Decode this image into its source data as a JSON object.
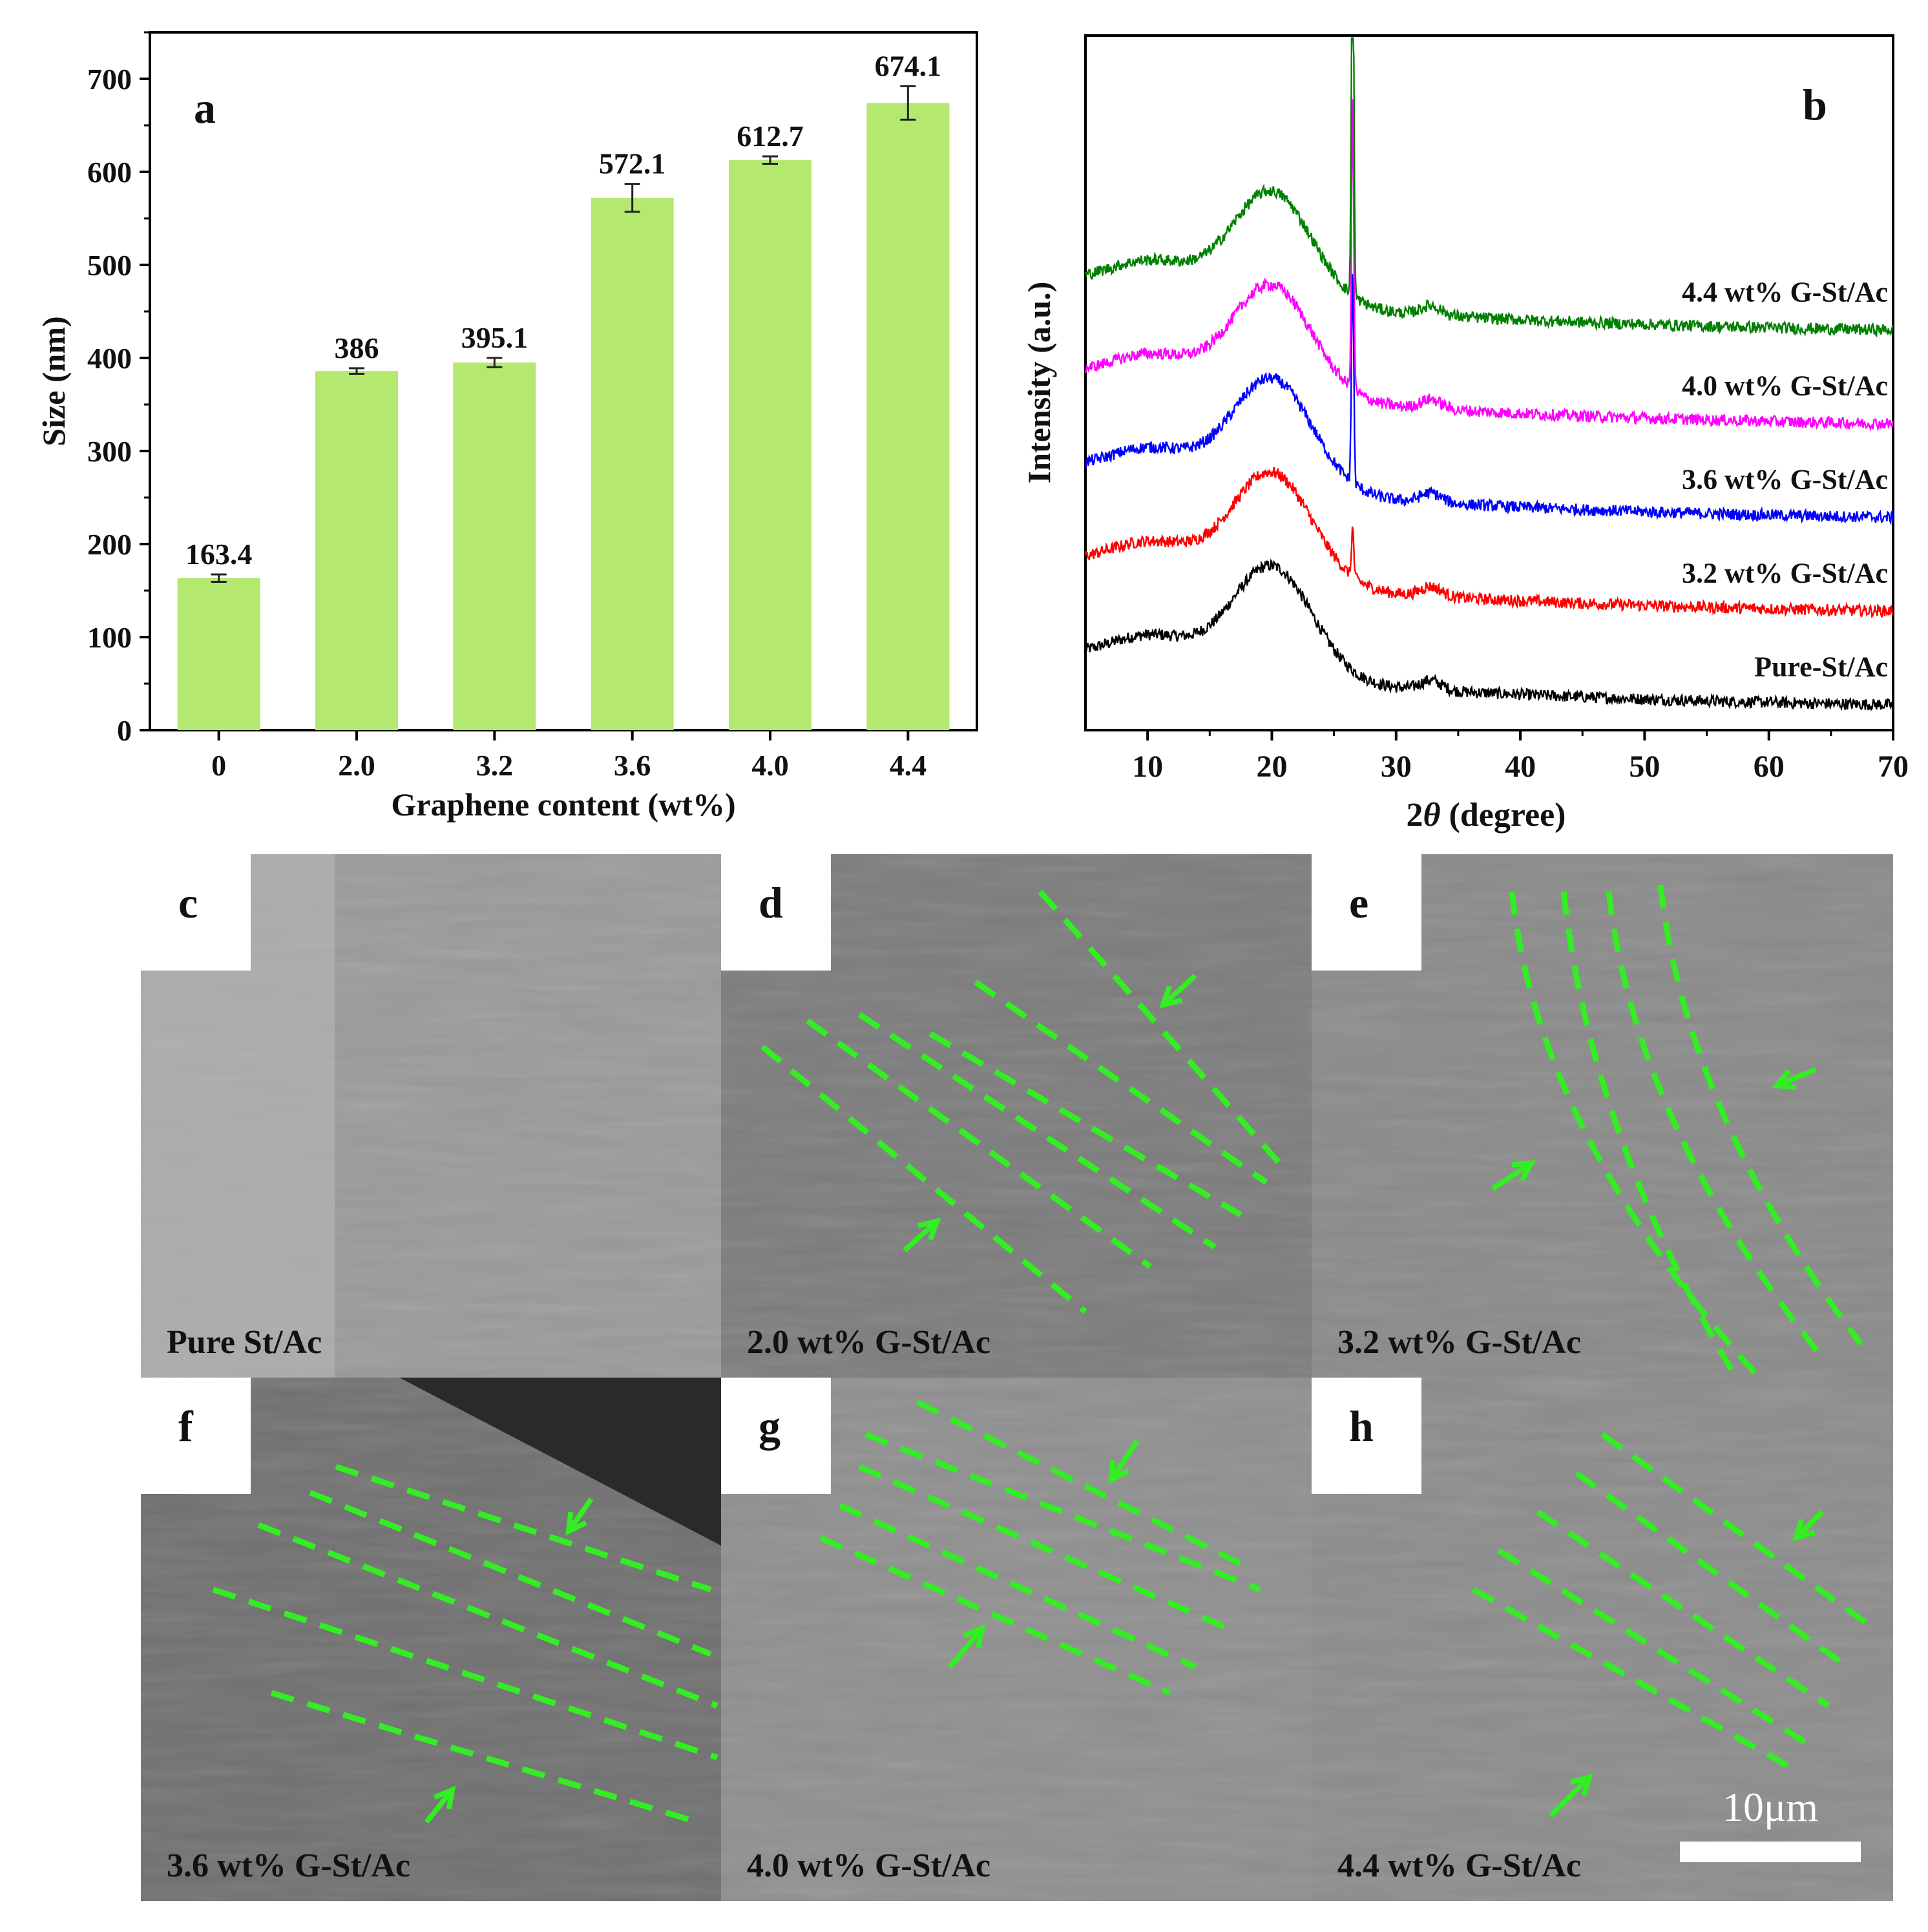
{
  "chart_data": [
    {
      "type": "bar",
      "panel_label": "a",
      "categories": [
        "0",
        "2.0",
        "3.2",
        "3.6",
        "4.0",
        "4.4"
      ],
      "values": [
        163.4,
        386,
        395.1,
        572.1,
        612.7,
        674.1
      ],
      "value_labels": [
        "163.4",
        "386",
        "395.1",
        "572.1",
        "612.7",
        "674.1"
      ],
      "errors": [
        4,
        3,
        5,
        15,
        4,
        18
      ],
      "xlabel": "Graphene content (wt%)",
      "ylabel": "Size (nm)",
      "ylim": [
        0,
        750
      ],
      "yticks": [
        0,
        100,
        200,
        300,
        400,
        500,
        600,
        700
      ],
      "bar_color": "#b5e86e"
    },
    {
      "type": "line",
      "panel_label": "b",
      "xlabel_prefix": "2",
      "xlabel_theta": "θ",
      "xlabel_suffix": " (degree)",
      "ylabel": "Intensity (a.u.)",
      "xlim": [
        5,
        70
      ],
      "xticks": [
        10,
        20,
        30,
        40,
        50,
        60,
        70
      ],
      "series": [
        {
          "name": "Pure-St/Ac",
          "color": "#000000",
          "offset": 0,
          "sharp_peak": 0
        },
        {
          "name": "3.2 wt% G-St/Ac",
          "color": "#ff0000",
          "offset": 1,
          "sharp_peak": 0.25
        },
        {
          "name": "3.6 wt% G-St/Ac",
          "color": "#0000ff",
          "offset": 2,
          "sharp_peak": 1.1
        },
        {
          "name": "4.0 wt% G-St/Ac",
          "color": "#ff00ff",
          "offset": 3,
          "sharp_peak": 1.5
        },
        {
          "name": "4.4 wt% G-St/Ac",
          "color": "#008000",
          "offset": 4,
          "sharp_peak": 2.2
        }
      ]
    }
  ],
  "sem_panels": [
    {
      "label": "c",
      "caption": "Pure St/Ac"
    },
    {
      "label": "d",
      "caption": "2.0 wt%  G-St/Ac"
    },
    {
      "label": "e",
      "caption": "3.2 wt%  G-St/Ac"
    },
    {
      "label": "f",
      "caption": "3.6 wt%  G-St/Ac"
    },
    {
      "label": "g",
      "caption": "4.0 wt%  G-St/Ac"
    },
    {
      "label": "h",
      "caption": "4.4 wt%  G-St/Ac"
    }
  ],
  "scale_bar": "10μm",
  "colors": {
    "guide_green": "#33ee22"
  }
}
